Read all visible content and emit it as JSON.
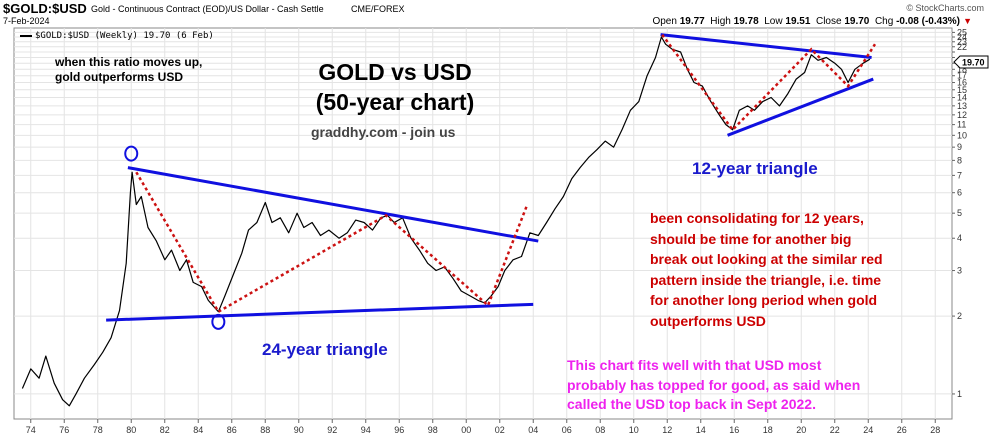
{
  "header": {
    "symbol": "$GOLD:$USD",
    "description": "Gold - Continuous Contract (EOD)/US Dollar - Cash Settle",
    "exchange": "CME/FOREX",
    "watermark": "© StockCharts.com",
    "date": "7-Feb-2024",
    "ohlc": {
      "open_label": "Open",
      "open": "19.77",
      "high_label": "High",
      "high": "19.78",
      "low_label": "Low",
      "low": "19.51",
      "close_label": "Close",
      "close": "19.70",
      "chg_label": "Chg",
      "chg": "-0.08 (-0.43%)"
    },
    "legend": "$GOLD:$USD (Weekly) 19.70 (6 Feb)",
    "last_value": "19.70"
  },
  "annotations": {
    "ratio_note": "when this ratio moves up,\ngold outperforms USD",
    "title": "GOLD vs USD\n(50-year chart)",
    "site": "graddhy.com - join us",
    "triangle_12": "12-year triangle",
    "triangle_24": "24-year triangle",
    "consolidating_note": "been consolidating for 12 years,\nshould be time for another big\nbreak out looking at the similar red\npattern inside the triangle, i.e. time\nfor another long period when gold\noutperforms USD",
    "usd_note": "This chart fits well with that USD most\nprobably has topped for good, as said when\ncalled the USD top back in Sept 2022."
  },
  "colors": {
    "price": "#000000",
    "trendline": "#1010e0",
    "pattern": "#cc1111",
    "note_red": "#cc0000",
    "note_magenta": "#ee22ee",
    "triangle_label": "#1a1acc",
    "grid": "#e4e4e4",
    "chg_red": "#cc0000"
  },
  "chart_data": {
    "type": "line",
    "title": "GOLD vs USD (50-year chart)",
    "series_name": "$GOLD:$USD (Weekly)",
    "y_scale": "log",
    "xlim": [
      1973,
      2029
    ],
    "ylim": [
      0.8,
      26
    ],
    "x_ticks": [
      "74",
      "76",
      "78",
      "80",
      "82",
      "84",
      "86",
      "88",
      "90",
      "92",
      "94",
      "96",
      "98",
      "00",
      "02",
      "04",
      "06",
      "08",
      "10",
      "12",
      "14",
      "16",
      "18",
      "20",
      "22",
      "24",
      "26",
      "28"
    ],
    "y_ticks": [
      1,
      2,
      3,
      4,
      5,
      6,
      7,
      8,
      9,
      10,
      11,
      12,
      13,
      14,
      15,
      16,
      17,
      18,
      19,
      20,
      21,
      22,
      23,
      24,
      25
    ],
    "y_tick_labels": [
      "1",
      "2",
      "3",
      "4",
      "5",
      "6",
      "7",
      "8",
      "9",
      "10",
      "11",
      "12",
      "13",
      "14",
      "15",
      "16",
      "17",
      "18",
      "",
      "",
      "",
      "22",
      "23",
      "24",
      "25"
    ],
    "x": [
      1973.5,
      1974.0,
      1974.5,
      1974.9,
      1975.4,
      1975.9,
      1976.3,
      1976.7,
      1977.2,
      1977.8,
      1978.3,
      1978.8,
      1979.3,
      1979.7,
      1979.95,
      1980.05,
      1980.3,
      1980.6,
      1981.0,
      1981.5,
      1982.0,
      1982.4,
      1982.9,
      1983.3,
      1983.7,
      1984.2,
      1984.6,
      1985.0,
      1985.2,
      1985.6,
      1986.1,
      1986.6,
      1987.0,
      1987.5,
      1988.0,
      1988.4,
      1988.9,
      1989.4,
      1989.9,
      1990.3,
      1990.8,
      1991.3,
      1991.8,
      1992.4,
      1992.9,
      1993.4,
      1993.9,
      1994.4,
      1994.9,
      1995.3,
      1995.7,
      1996.2,
      1996.7,
      1997.2,
      1997.7,
      1998.2,
      1998.7,
      1999.2,
      1999.7,
      2000.2,
      2000.7,
      2001.1,
      2001.5,
      2001.9,
      2002.3,
      2002.8,
      2003.3,
      2003.8,
      2004.3,
      2004.8,
      2005.3,
      2005.8,
      2006.3,
      2006.8,
      2007.3,
      2007.8,
      2008.3,
      2008.8,
      2009.3,
      2009.8,
      2010.3,
      2010.8,
      2011.3,
      2011.65,
      2011.9,
      2012.3,
      2012.8,
      2013.2,
      2013.6,
      2014.1,
      2014.6,
      2015.1,
      2015.5,
      2015.9,
      2016.3,
      2016.8,
      2017.2,
      2017.7,
      2018.2,
      2018.7,
      2019.2,
      2019.7,
      2020.2,
      2020.6,
      2021.0,
      2021.5,
      2022.0,
      2022.4,
      2022.8,
      2023.2,
      2023.7,
      2024.1
    ],
    "y": [
      1.05,
      1.25,
      1.15,
      1.4,
      1.1,
      0.95,
      0.9,
      1.0,
      1.15,
      1.3,
      1.45,
      1.65,
      2.1,
      3.2,
      6.0,
      7.2,
      5.4,
      5.8,
      4.4,
      3.9,
      3.3,
      3.6,
      3.0,
      3.3,
      2.7,
      2.6,
      2.3,
      2.15,
      2.08,
      2.4,
      2.9,
      3.5,
      4.3,
      4.6,
      5.5,
      4.6,
      4.8,
      4.2,
      5.0,
      4.4,
      4.6,
      4.1,
      4.3,
      4.0,
      4.2,
      4.7,
      4.6,
      4.3,
      4.8,
      4.9,
      4.6,
      4.8,
      4.0,
      3.6,
      3.2,
      3.0,
      3.1,
      2.8,
      2.5,
      2.4,
      2.3,
      2.25,
      2.4,
      2.6,
      3.0,
      3.3,
      3.4,
      4.2,
      4.1,
      4.6,
      5.2,
      5.8,
      6.8,
      7.5,
      8.2,
      8.8,
      9.5,
      9.0,
      10.5,
      12.5,
      13.5,
      17.0,
      20.0,
      24.0,
      22.5,
      21.5,
      21.0,
      18.0,
      16.0,
      15.5,
      13.5,
      12.0,
      11.0,
      10.5,
      12.5,
      13.0,
      12.5,
      13.5,
      14.0,
      13.0,
      14.5,
      16.5,
      17.5,
      20.5,
      19.5,
      20.0,
      19.0,
      18.0,
      16.0,
      18.0,
      19.0,
      19.7
    ],
    "trendlines": [
      {
        "name": "24-year triangle upper",
        "x": [
          1979.8,
          2004.3
        ],
        "y": [
          7.5,
          3.9
        ]
      },
      {
        "name": "24-year triangle lower",
        "x": [
          1978.5,
          2004.0
        ],
        "y": [
          1.93,
          2.22
        ]
      },
      {
        "name": "12-year triangle upper",
        "x": [
          2011.6,
          2024.2
        ],
        "y": [
          24.5,
          20.0
        ]
      },
      {
        "name": "12-year triangle lower",
        "x": [
          2015.6,
          2024.3
        ],
        "y": [
          10.0,
          16.5
        ]
      }
    ],
    "pattern_lines": [
      {
        "name": "24-year red pattern",
        "x": [
          1980.3,
          1985.2,
          1995.2,
          2001.3,
          2003.6
        ],
        "y": [
          7.2,
          2.08,
          4.9,
          2.2,
          5.3
        ]
      },
      {
        "name": "12-year red pattern",
        "x": [
          2011.7,
          2015.9,
          2020.6,
          2022.8,
          2024.4
        ],
        "y": [
          24.5,
          10.5,
          21.5,
          15.5,
          22.5
        ]
      }
    ],
    "markers": [
      {
        "name": "1980 peak",
        "x": 1980.0,
        "y": 8.5
      },
      {
        "name": "1985 low",
        "x": 1985.2,
        "y": 1.9
      }
    ],
    "last_value": 19.7
  }
}
